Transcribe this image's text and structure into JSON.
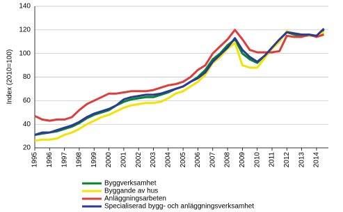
{
  "chart_data": {
    "type": "line",
    "y_label": "Index (2010=100)",
    "x": [
      1995,
      1995.5,
      1996,
      1996.5,
      1997,
      1997.5,
      1998,
      1998.5,
      1999,
      1999.5,
      2000,
      2000.5,
      2001,
      2001.5,
      2002,
      2002.5,
      2003,
      2003.5,
      2004,
      2004.5,
      2005,
      2005.5,
      2006,
      2006.5,
      2007,
      2007.5,
      2008,
      2008.5,
      2009,
      2009.5,
      2010,
      2010.5,
      2011,
      2011.5,
      2012,
      2012.5,
      2013,
      2013.5,
      2014,
      2014.5
    ],
    "series": [
      {
        "name": "Byggverksamhet",
        "color": "#00882b",
        "values": [
          31,
          32,
          33,
          34,
          36,
          38,
          41,
          45,
          48,
          50,
          52,
          56,
          59,
          61,
          62,
          63,
          63,
          65,
          67,
          70,
          72,
          76,
          80,
          86,
          95,
          100,
          107,
          112,
          100,
          95,
          92,
          98,
          105,
          111,
          118,
          116,
          115,
          115,
          115,
          120
        ]
      },
      {
        "name": "Byggande av hus",
        "color": "#f2e400",
        "values": [
          26,
          27,
          27,
          28,
          31,
          33,
          36,
          40,
          43,
          46,
          48,
          51,
          54,
          56,
          57,
          58,
          58,
          59,
          62,
          66,
          68,
          72,
          76,
          82,
          92,
          97,
          104,
          109,
          90,
          88,
          88,
          96,
          104,
          110,
          119,
          117,
          116,
          115,
          115,
          118
        ]
      },
      {
        "name": "Anläggningsarbeten",
        "color": "#e03c3c",
        "values": [
          47,
          44,
          43,
          44,
          44,
          46,
          52,
          57,
          60,
          63,
          66,
          66,
          67,
          68,
          68,
          68,
          69,
          71,
          73,
          74,
          76,
          80,
          86,
          90,
          100,
          106,
          112,
          120,
          112,
          103,
          101,
          101,
          101,
          102,
          115,
          114,
          114,
          116,
          114,
          116
        ]
      },
      {
        "name": "Specialiserad bygg- och anläggningsverksamhet",
        "color": "#2b3a99",
        "values": [
          31,
          33,
          33,
          35,
          37,
          39,
          42,
          46,
          49,
          51,
          53,
          56,
          61,
          63,
          64,
          65,
          65,
          66,
          68,
          70,
          72,
          76,
          79,
          84,
          93,
          99,
          105,
          113,
          103,
          97,
          93,
          98,
          105,
          112,
          118,
          117,
          116,
          116,
          115,
          121
        ]
      }
    ],
    "xlim": [
      1995,
      2014.8
    ],
    "xticks": [
      1995,
      1996,
      1997,
      1998,
      1999,
      2000,
      2001,
      2002,
      2003,
      2004,
      2005,
      2006,
      2007,
      2008,
      2009,
      2010,
      2011,
      2012,
      2013,
      2014
    ],
    "ylim": [
      20,
      140
    ],
    "yticks": [
      20,
      40,
      60,
      80,
      100,
      120,
      140
    ],
    "grid": true
  }
}
